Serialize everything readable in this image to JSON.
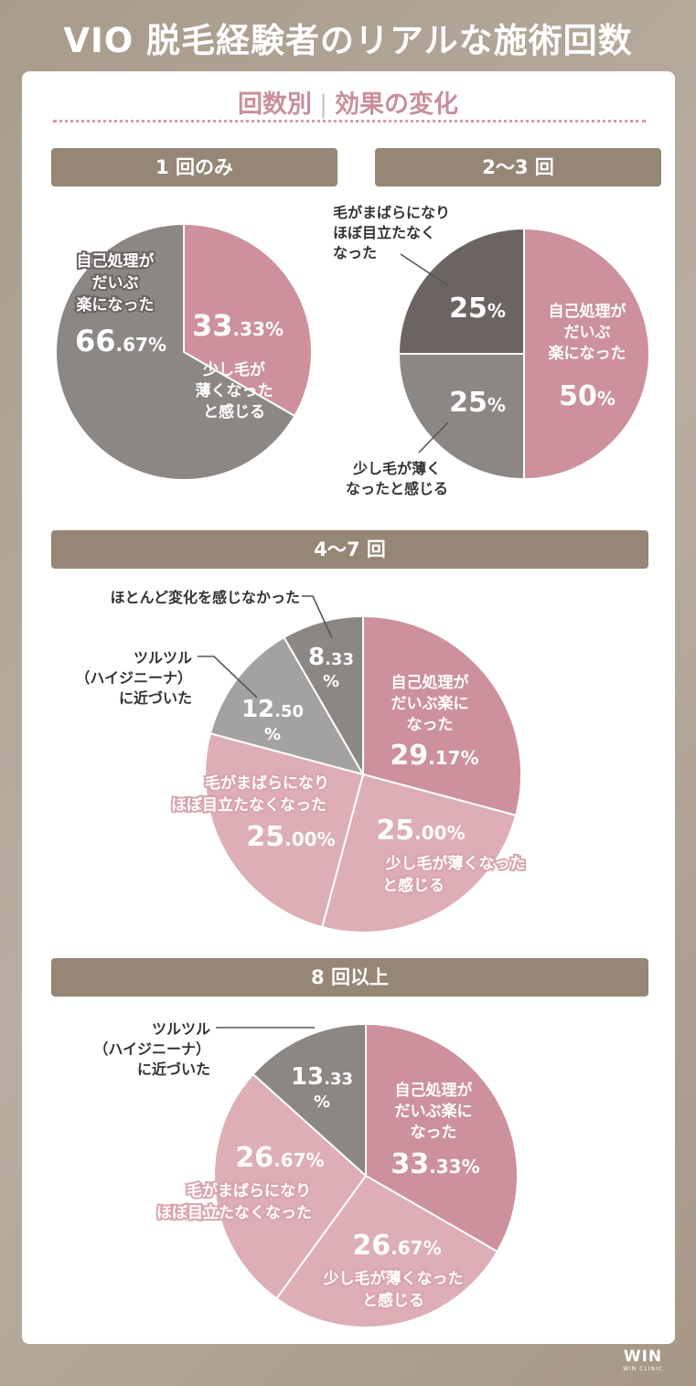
{
  "title": "VIO 脱毛経験者のリアルな施術回数",
  "subtitle": {
    "left": "回数別",
    "sep": "|",
    "right": "効果の変化"
  },
  "sections": {
    "s1": "1 回のみ",
    "s2": "2〜3 回",
    "s3": "4〜7 回",
    "s4": "8 回以上"
  },
  "logo": {
    "main": "WIN",
    "sub": "WIN CLINIC"
  },
  "colors": {
    "pink": "#cc919c",
    "light_pink": "#ddaeb6",
    "dark_gray": "#6b6463",
    "mid_gray": "#8b8785",
    "light_gray": "#a4a2a0",
    "header_brown": "#968675",
    "title_pink": "#c98f9b"
  },
  "chart_data": [
    {
      "type": "pie",
      "title": "1 回のみ",
      "slices": [
        {
          "label": "少し毛が薄くなったと感じる",
          "value": 33.33
        },
        {
          "label": "自己処理がだいぶ楽になった",
          "value": 66.67
        }
      ]
    },
    {
      "type": "pie",
      "title": "2〜3 回",
      "slices": [
        {
          "label": "自己処理がだいぶ楽になった",
          "value": 50
        },
        {
          "label": "少し毛が薄くなったと感じる",
          "value": 25
        },
        {
          "label": "毛がまばらになりほぼ目立たなくなった",
          "value": 25
        }
      ]
    },
    {
      "type": "pie",
      "title": "4〜7 回",
      "slices": [
        {
          "label": "自己処理がだいぶ楽になった",
          "value": 29.17
        },
        {
          "label": "少し毛が薄くなったと感じる",
          "value": 25.0
        },
        {
          "label": "毛がまばらになりほぼ目立たなくなった",
          "value": 25.0
        },
        {
          "label": "ツルツル（ハイジニーナ）に近づいた",
          "value": 12.5
        },
        {
          "label": "ほとんど変化を感じなかった",
          "value": 8.33
        }
      ]
    },
    {
      "type": "pie",
      "title": "8 回以上",
      "slices": [
        {
          "label": "自己処理がだいぶ楽になった",
          "value": 33.33
        },
        {
          "label": "少し毛が薄くなったと感じる",
          "value": 26.67
        },
        {
          "label": "毛がまばらになりほぼ目立たなくなった",
          "value": 26.67
        },
        {
          "label": "ツルツル（ハイジニーナ）に近づいた",
          "value": 13.33
        }
      ]
    }
  ],
  "labels": {
    "c1": {
      "a1": "自己処理が",
      "a2": "だいぶ",
      "a3": "楽になった",
      "a_pct_int": "66",
      "a_pct_dec": ".67%",
      "b_pct_int": "33",
      "b_pct_dec": ".33%",
      "b1": "少し毛が",
      "b2": "薄くなった",
      "b3": "と感じる"
    },
    "c2": {
      "a1": "自己処理が",
      "a2": "だいぶ",
      "a3": "楽になった",
      "a_pct_int": "50",
      "a_pct_dec": "%",
      "b_pct_int": "25",
      "b_pct_dec": "%",
      "b1": "少し毛が薄く",
      "b2": "なったと感じる",
      "c_pct_int": "25",
      "c_pct_dec": "%",
      "c1": "毛がまばらになり",
      "c2": "ほぼ目立たなく",
      "c3": "なった"
    },
    "c3": {
      "a1": "自己処理が",
      "a2": "だいぶ楽に",
      "a3": "なった",
      "a_pct_int": "29",
      "a_pct_dec": ".17%",
      "b_pct_int": "25",
      "b_pct_dec": ".00%",
      "b1": "少し毛が薄くなった",
      "b2": "と感じる",
      "c1": "毛がまばらになり",
      "c2": "ほぼ目立たなくなった",
      "c_pct_int": "25",
      "c_pct_dec": ".00%",
      "d1": "ツルツル",
      "d2": "（ハイジニーナ）",
      "d3": "に近づいた",
      "d_pct_int": "12",
      "d_pct_dec": ".50",
      "d_pct_sym": "%",
      "e1": "ほとんど変化を感じなかった",
      "e_pct_int": "8",
      "e_pct_dec": ".33",
      "e_pct_sym": "%"
    },
    "c4": {
      "a1": "自己処理が",
      "a2": "だいぶ楽に",
      "a3": "なった",
      "a_pct_int": "33",
      "a_pct_dec": ".33%",
      "b_pct_int": "26",
      "b_pct_dec": ".67%",
      "b1": "少し毛が薄くなった",
      "b2": "と感じる",
      "c_pct_int": "26",
      "c_pct_dec": ".67%",
      "c1": "毛がまばらになり",
      "c2": "ほぼ目立たなくなった",
      "d1": "ツルツル",
      "d2": "（ハイジニーナ）",
      "d3": "に近づいた",
      "d_pct_int": "13",
      "d_pct_dec": ".33",
      "d_pct_sym": "%"
    }
  }
}
